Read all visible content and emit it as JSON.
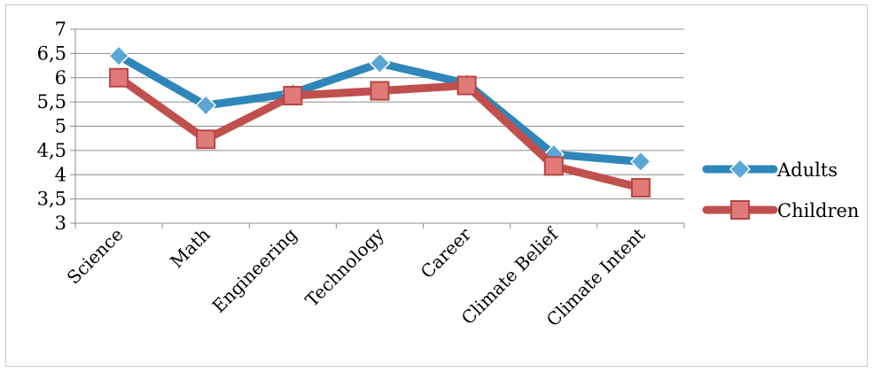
{
  "chart_data": {
    "type": "line",
    "categories": [
      "Science",
      "Math",
      "Engineering",
      "Technology",
      "Career",
      "Climate Belief",
      "Climate Intent"
    ],
    "series": [
      {
        "name": "Adults",
        "color": "#2e87b8",
        "marker": "diamond",
        "values": [
          6.45,
          5.43,
          5.68,
          6.3,
          5.88,
          4.42,
          4.27
        ]
      },
      {
        "name": "Children",
        "color": "#c0504d",
        "marker": "square",
        "values": [
          6.0,
          4.73,
          5.63,
          5.73,
          5.84,
          4.18,
          3.73
        ]
      }
    ],
    "y_ticks": [
      "3",
      "3,5",
      "4",
      "4,5",
      "5",
      "5,5",
      "6",
      "6,5",
      "7"
    ],
    "ylim": [
      3,
      7
    ],
    "grid": true,
    "legend_position": "right",
    "title": "",
    "xlabel": "",
    "ylabel": ""
  }
}
